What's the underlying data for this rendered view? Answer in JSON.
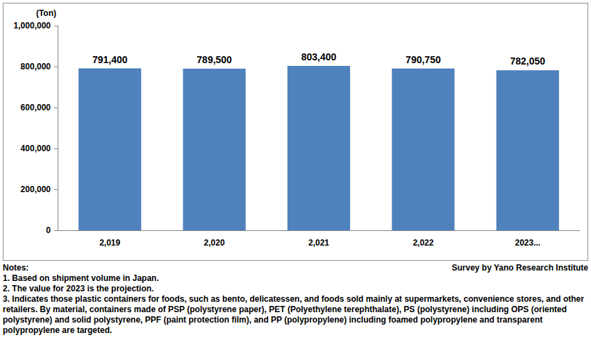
{
  "chart_data": {
    "type": "bar",
    "y_label": "(Ton)",
    "categories": [
      "2,019",
      "2,020",
      "2,021",
      "2,022",
      "2023..."
    ],
    "values": [
      791400,
      789500,
      803400,
      790750,
      782050
    ],
    "value_labels": [
      "791,400",
      "789,500",
      "803,400",
      "790,750",
      "782,050"
    ],
    "data_labels": true,
    "color": "#4f81bd",
    "ylim": [
      0,
      1000000
    ],
    "yticks": [
      0,
      {
        "value": 200000,
        "label": "200,000"
      },
      {
        "value": 400000,
        "label": "400,000"
      },
      {
        "value": 600000,
        "label": "600,000"
      },
      {
        "value": 800000,
        "label": "800,000"
      },
      {
        "value": 1000000,
        "label": "1,000,000"
      }
    ],
    "grid": false,
    "notes_title": "Notes:",
    "notes": [
      "1. Based on shipment volume in Japan.",
      "2. The value for 2023 is the projection.",
      "3. Indicates those plastic containers for foods, such as bento, delicatessen, and foods sold mainly at supermarkets, convenience stores, and other retailers. By material, containers made of PSP (polystyrene paper), PET (Polyethylene terephthalate), PS (polystyrene) including OPS (oriented polystyrene) and solid polystyrene, PPF (paint protection film), and PP (polypropylene) including foamed polypropylene and transparent polypropylene are targeted."
    ],
    "source": "Survey by Yano Research Institute"
  }
}
